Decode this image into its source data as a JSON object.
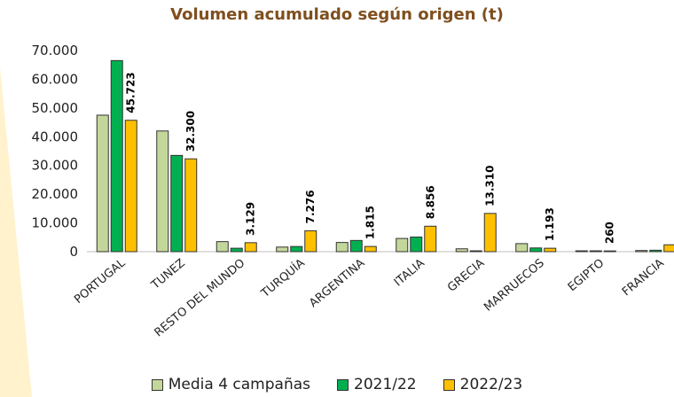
{
  "chart_data": {
    "type": "bar",
    "title": "Volumen acumulado según origen (t)",
    "categories": [
      "PORTUGAL",
      "TUNEZ",
      "RESTO DEL MUNDO",
      "TURQUÍA",
      "ARGENTINA",
      "ITALIA",
      "GRECIA",
      "MARRUECOS",
      "EGIPTO",
      "FRANCIA"
    ],
    "series": [
      {
        "name": "Media 4 campañas",
        "color": "#c4d79b",
        "values": [
          47500,
          42000,
          3500,
          1600,
          3200,
          4600,
          1000,
          2800,
          300,
          400
        ]
      },
      {
        "name": "2021/22",
        "color": "#00b050",
        "values": [
          66500,
          33500,
          1200,
          1800,
          3900,
          5100,
          300,
          1300,
          300,
          500
        ]
      },
      {
        "name": "2022/23",
        "color": "#ffc000",
        "values": [
          45723,
          32300,
          3129,
          7276,
          1815,
          8856,
          13310,
          1193,
          260,
          2400
        ]
      }
    ],
    "data_labels": [
      "45.723",
      "32.300",
      "3.129",
      "7.276",
      "1.815",
      "8.856",
      "13.310",
      "1.193",
      "260",
      ""
    ],
    "ylim": [
      0,
      70000
    ],
    "yticks": [
      "0",
      "10.000",
      "20.000",
      "30.000",
      "40.000",
      "50.000",
      "60.000",
      "70.000"
    ],
    "title_color": "#7f4f1e",
    "grid": false,
    "legend_position": "bottom"
  }
}
